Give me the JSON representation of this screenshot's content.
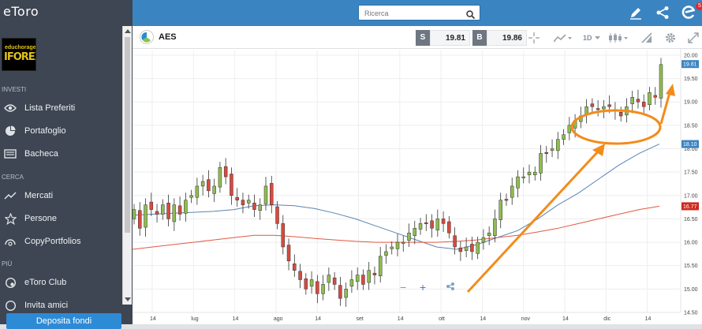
{
  "app": {
    "brand": "eToro",
    "avatar_line1": "educhorage",
    "avatar_line2": "IFOREX",
    "notifications": "5"
  },
  "sidebar": {
    "sections": [
      "INVESTI",
      "CERCA",
      "PIÙ"
    ],
    "items": [
      {
        "label": "Lista Preferiti",
        "icon": "eye-icon"
      },
      {
        "label": "Portafoglio",
        "icon": "pie-chart-icon"
      },
      {
        "label": "Bacheca",
        "icon": "feed-icon"
      },
      {
        "label": "Mercati",
        "icon": "trend-line-icon"
      },
      {
        "label": "Persone",
        "icon": "star-icon"
      },
      {
        "label": "CopyPortfolios",
        "icon": "copy-portfolio-icon"
      },
      {
        "label": "eToro Club",
        "icon": "club-icon"
      },
      {
        "label": "Invita amici",
        "icon": "invite-icon"
      }
    ],
    "deposit_label": "Deposita fondi"
  },
  "header": {
    "search_placeholder": "Ricerca"
  },
  "instrument": {
    "ticker": "AES",
    "sell_key": "S",
    "sell_price": "19.81",
    "buy_key": "B",
    "buy_price": "19.86",
    "timeframe": "1D"
  },
  "colors": {
    "up_candle": "#8fbd4f",
    "down_candle": "#d84a3f",
    "ma_short": "#5b84b1",
    "ma_long": "#e05a43",
    "annotation": "#f28c1a",
    "accent": "#3b84c2"
  },
  "chart_data": {
    "type": "line",
    "title": "",
    "xlabel": "",
    "ylabel": "",
    "ylim": [
      14.5,
      20.1
    ],
    "yticks": [
      14.5,
      15.0,
      15.5,
      16.0,
      16.5,
      17.0,
      17.5,
      18.0,
      18.5,
      19.0,
      19.5,
      20.0
    ],
    "ytick_labels": [
      "14.50",
      "15.00",
      "15.50",
      "16.00",
      "16.50",
      "17.00",
      "17.50",
      "18.00",
      "18.50",
      "19.00",
      "19.50",
      "20.00"
    ],
    "xtick_labels": [
      "14",
      "lug",
      "14",
      "ago",
      "14",
      "set",
      "14",
      "ott",
      "14",
      "nov",
      "14",
      "dic",
      "14"
    ],
    "price_tags": [
      {
        "label": "19.81",
        "value": 19.81,
        "color": "#3b84c2"
      },
      {
        "label": "18.10",
        "value": 18.1,
        "color": "#3b84c2"
      },
      {
        "label": "16.77",
        "value": 16.77,
        "color": "#d0271e"
      }
    ],
    "closes": [
      16.7,
      16.3,
      16.8,
      16.7,
      16.6,
      16.8,
      16.5,
      16.8,
      16.6,
      16.9,
      17.0,
      17.2,
      17.3,
      17.1,
      17.2,
      17.6,
      17.4,
      17.0,
      16.9,
      16.8,
      16.9,
      16.7,
      16.8,
      17.2,
      16.8,
      16.4,
      15.9,
      15.6,
      15.4,
      15.2,
      15.0,
      15.2,
      14.9,
      15.1,
      15.3,
      15.1,
      14.8,
      15.0,
      15.2,
      15.3,
      15.1,
      15.4,
      15.3,
      15.7,
      15.8,
      15.9,
      16.0,
      16.0,
      16.2,
      16.3,
      16.4,
      16.4,
      16.3,
      16.5,
      16.4,
      16.2,
      15.9,
      15.8,
      15.9,
      15.8,
      16.0,
      16.1,
      16.2,
      16.5,
      16.9,
      16.9,
      17.2,
      17.4,
      17.4,
      17.5,
      17.5,
      17.9,
      17.9,
      18.0,
      18.2,
      18.3,
      18.5,
      18.6,
      18.7,
      18.9,
      18.9,
      18.85,
      18.9,
      18.9,
      18.8,
      18.7,
      18.9,
      19.1,
      19.0,
      18.9,
      19.2,
      19.1,
      19.8
    ],
    "series": [
      {
        "name": "",
        "values": [
          16.58,
          16.6,
          16.62,
          16.64,
          16.66,
          16.7,
          16.78,
          16.8,
          16.78,
          16.72,
          16.62,
          16.5,
          16.35,
          16.2,
          16.05,
          15.9,
          15.85,
          15.95,
          16.1,
          16.25,
          16.5,
          16.8,
          17.05,
          17.35,
          17.65,
          17.9,
          18.1
        ]
      },
      {
        "name": "",
        "values": [
          15.85,
          15.9,
          15.95,
          16.0,
          16.05,
          16.1,
          16.15,
          16.15,
          16.12,
          16.08,
          16.05,
          16.02,
          16.0,
          16.0,
          16.0,
          16.0,
          16.02,
          16.05,
          16.1,
          16.15,
          16.22,
          16.3,
          16.4,
          16.5,
          16.6,
          16.7,
          16.77
        ]
      }
    ]
  }
}
